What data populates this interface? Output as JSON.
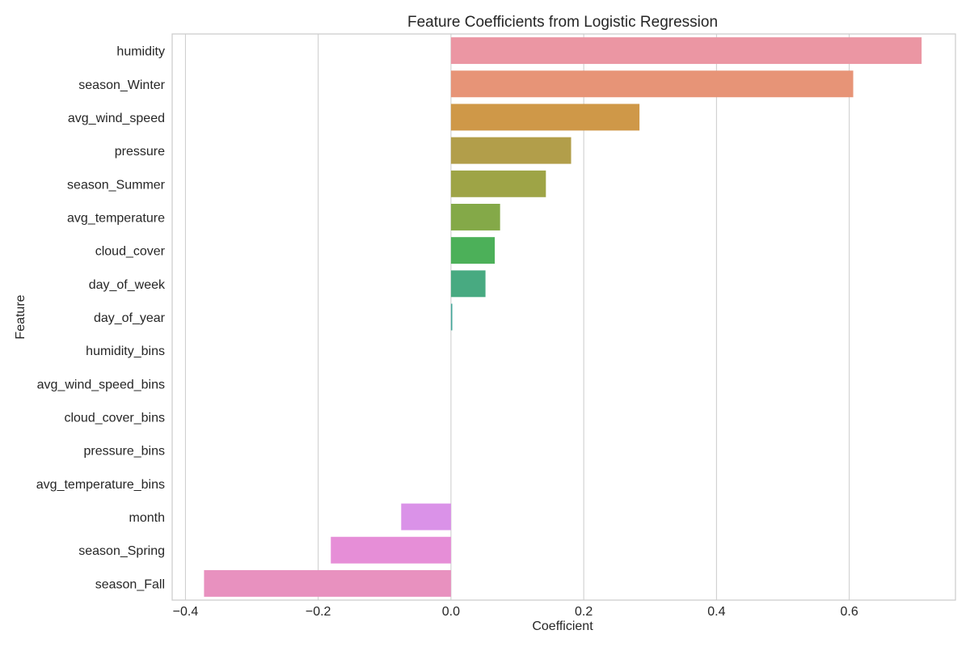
{
  "chart_data": {
    "type": "bar",
    "orientation": "horizontal",
    "title": "Feature Coefficients from Logistic Regression",
    "xlabel": "Coefficient",
    "ylabel": "Feature",
    "xlim": [
      -0.42,
      0.76
    ],
    "xticks": [
      -0.4,
      -0.2,
      0.0,
      0.2,
      0.4,
      0.6
    ],
    "xtick_labels": [
      "−0.4",
      "−0.2",
      "0.0",
      "0.2",
      "0.4",
      "0.6"
    ],
    "grid": true,
    "categories": [
      "humidity",
      "season_Winter",
      "avg_wind_speed",
      "pressure",
      "season_Summer",
      "avg_temperature",
      "cloud_cover",
      "day_of_week",
      "day_of_year",
      "humidity_bins",
      "avg_wind_speed_bins",
      "cloud_cover_bins",
      "pressure_bins",
      "avg_temperature_bins",
      "month",
      "season_Spring",
      "season_Fall"
    ],
    "values": [
      0.709,
      0.606,
      0.284,
      0.181,
      0.143,
      0.074,
      0.066,
      0.052,
      0.002,
      0.0,
      0.0,
      0.0,
      0.0,
      0.0,
      -0.075,
      -0.181,
      -0.372
    ],
    "colors": [
      "#eb96a3",
      "#e79477",
      "#cf9848",
      "#b29e4a",
      "#9ea446",
      "#84a948",
      "#4cb059",
      "#48aa81",
      "#46a79a",
      "#47a8ab",
      "#48a9b7",
      "#4aaac7",
      "#7faed9",
      "#b3a4e8",
      "#da92e8",
      "#e68ed7",
      "#e891bf"
    ]
  }
}
